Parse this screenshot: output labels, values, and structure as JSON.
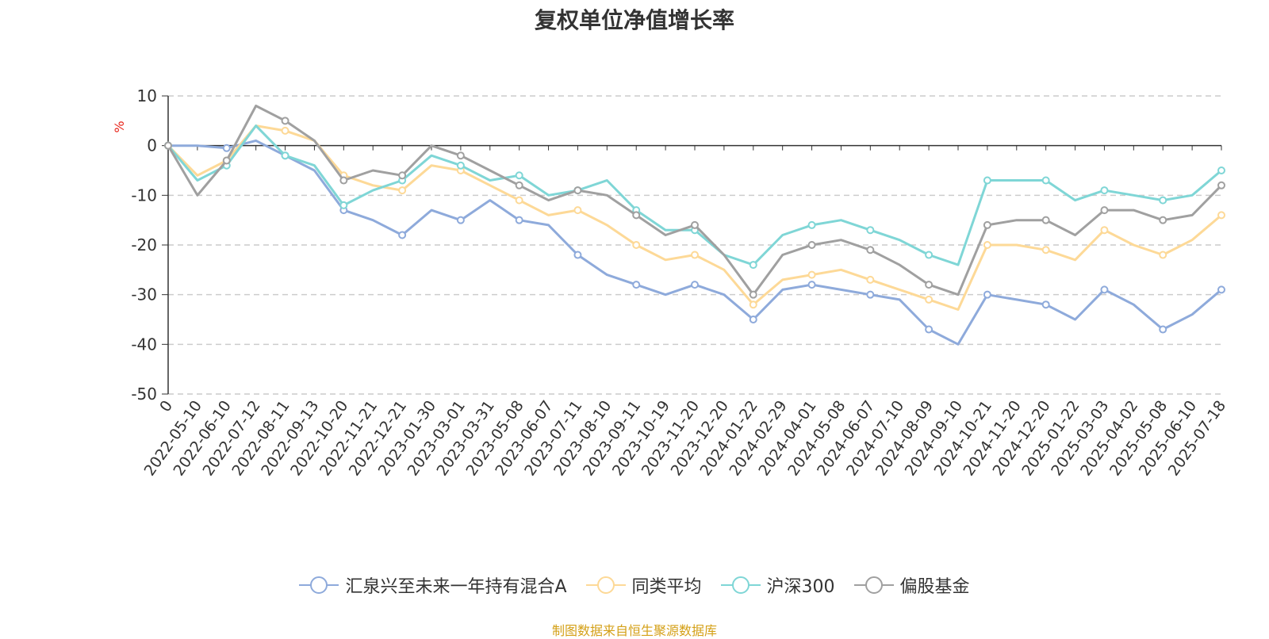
{
  "chart_data": {
    "type": "line",
    "title": "复权单位净值增长率",
    "ylabel": "%",
    "ylim": [
      -50,
      10
    ],
    "yticks": [
      10,
      0,
      -10,
      -20,
      -30,
      -40,
      -50
    ],
    "grid": true,
    "legend_position": "bottom",
    "x_labels": [
      "0",
      "2022-05-10",
      "2022-06-10",
      "2022-07-12",
      "2022-08-11",
      "2022-09-13",
      "2022-10-20",
      "2022-11-21",
      "2022-12-21",
      "2023-01-30",
      "2023-03-01",
      "2023-03-31",
      "2023-05-08",
      "2023-06-07",
      "2023-07-11",
      "2023-08-10",
      "2023-09-11",
      "2023-10-19",
      "2023-11-20",
      "2023-12-20",
      "2024-01-22",
      "2024-02-29",
      "2024-04-01",
      "2024-05-08",
      "2024-06-07",
      "2024-07-10",
      "2024-08-09",
      "2024-09-10",
      "2024-10-21",
      "2024-11-20",
      "2024-12-20",
      "2025-01-22",
      "2025-03-03",
      "2025-04-02",
      "2025-05-08",
      "2025-06-10",
      "2025-07-18"
    ],
    "series": [
      {
        "name": "汇泉兴至未来一年持有混合A",
        "color": "#8eaadb",
        "values": [
          0,
          0,
          -0.5,
          1,
          -2,
          -5,
          -13,
          -15,
          -18,
          -13,
          -15,
          -11,
          -15,
          -16,
          -22,
          -26,
          -28,
          -30,
          -28,
          -30,
          -35,
          -29,
          -28,
          -29,
          -30,
          -31,
          -37,
          -40,
          -30,
          -31,
          -32,
          -35,
          -29,
          -32,
          -37,
          -34,
          -29
        ]
      },
      {
        "name": "同类平均",
        "color": "#fdd997",
        "values": [
          0,
          -6,
          -3,
          4,
          3,
          1,
          -6,
          -8,
          -9,
          -4,
          -5,
          -8,
          -11,
          -14,
          -13,
          -16,
          -20,
          -23,
          -22,
          -25,
          -32,
          -27,
          -26,
          -25,
          -27,
          -29,
          -31,
          -33,
          -20,
          -20,
          -21,
          -23,
          -17,
          -20,
          -22,
          -19,
          -14
        ]
      },
      {
        "name": "沪深300",
        "color": "#7fd6d6",
        "values": [
          0,
          -7,
          -4,
          4,
          -2,
          -4,
          -12,
          -9,
          -7,
          -2,
          -4,
          -7,
          -6,
          -10,
          -9,
          -7,
          -13,
          -17,
          -17,
          -22,
          -24,
          -18,
          -16,
          -15,
          -17,
          -19,
          -22,
          -24,
          -7,
          -7,
          -7,
          -11,
          -9,
          -10,
          -11,
          -10,
          -5
        ]
      },
      {
        "name": "偏股基金",
        "color": "#a0a0a0",
        "values": [
          0,
          -10,
          -3,
          8,
          5,
          1,
          -7,
          -5,
          -6,
          0,
          -2,
          -5,
          -8,
          -11,
          -9,
          -10,
          -14,
          -18,
          -16,
          -22,
          -30,
          -22,
          -20,
          -19,
          -21,
          -24,
          -28,
          -30,
          -16,
          -15,
          -15,
          -18,
          -13,
          -13,
          -15,
          -14,
          -8
        ]
      }
    ]
  },
  "source_note": "制图数据来自恒生聚源数据库"
}
